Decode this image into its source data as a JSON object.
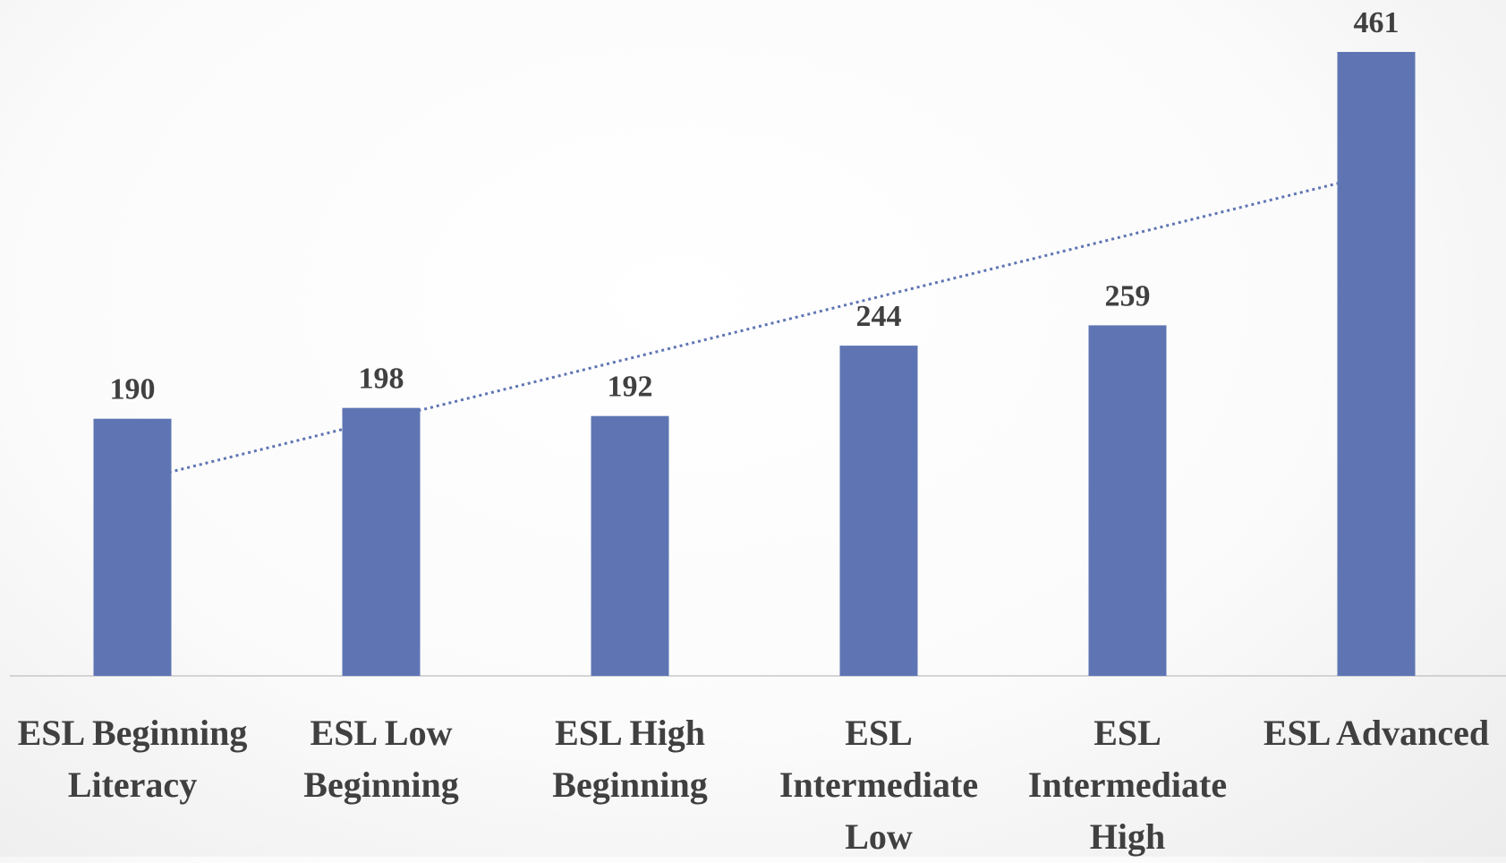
{
  "chart_data": {
    "type": "bar",
    "categories": [
      "ESL Beginning Literacy",
      "ESL Low Beginning",
      "ESL High Beginning",
      "ESL Intermediate Low",
      "ESL Intermediate High",
      "ESL Advanced"
    ],
    "values": [
      190,
      198,
      192,
      244,
      259,
      461
    ],
    "color": "#5f75b3",
    "trendline": "linear",
    "data_labels": true
  }
}
